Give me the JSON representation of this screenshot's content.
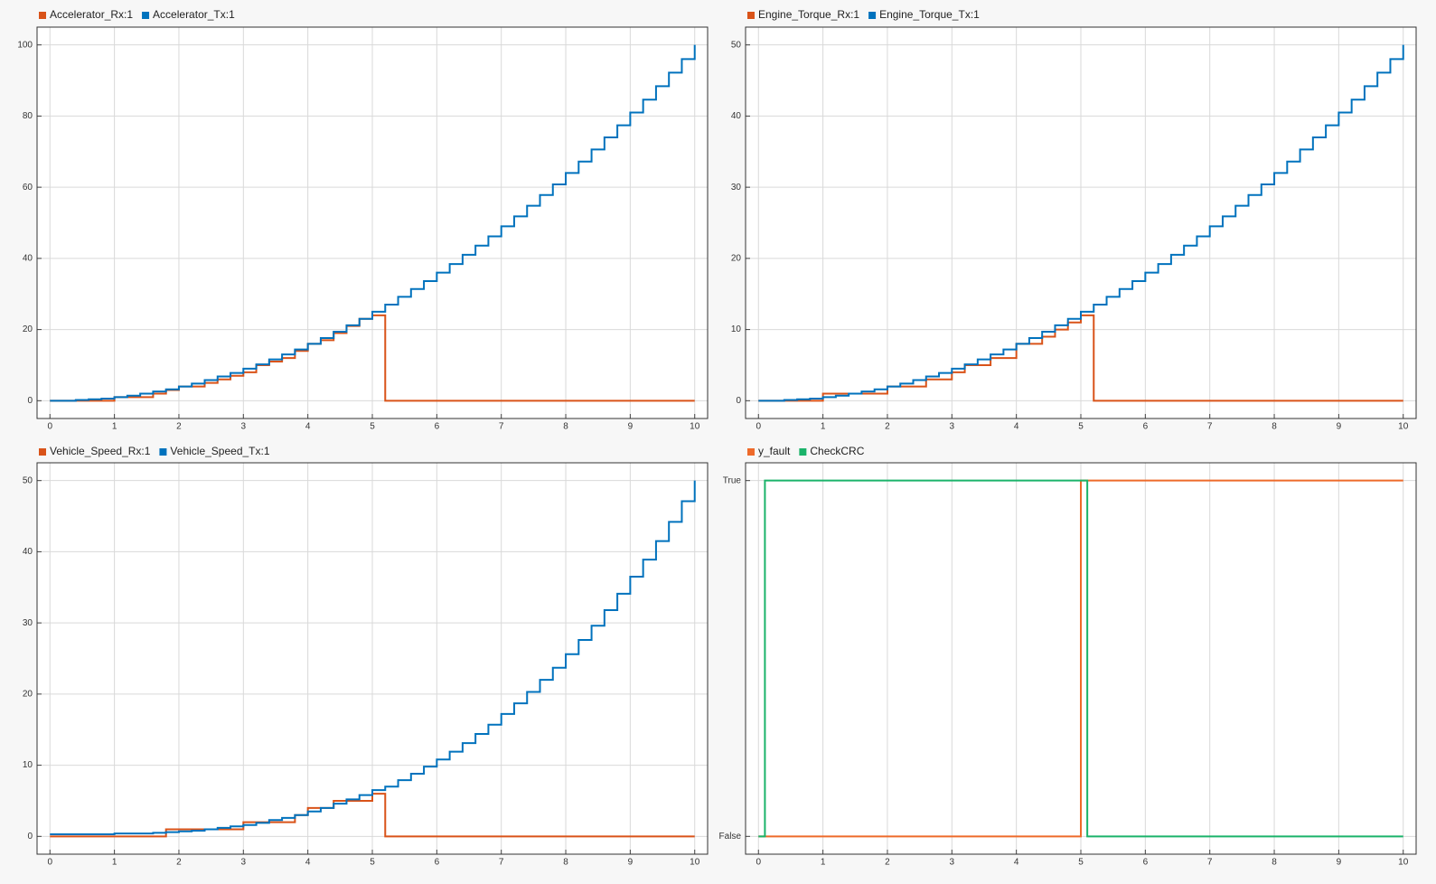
{
  "chart_data": [
    {
      "type": "line",
      "step": true,
      "x": [
        0,
        0.2,
        0.4,
        0.6,
        0.8,
        1,
        1.2,
        1.4,
        1.6,
        1.8,
        2,
        2.2,
        2.4,
        2.6,
        2.8,
        3,
        3.2,
        3.4,
        3.6,
        3.8,
        4,
        4.2,
        4.4,
        4.6,
        4.8,
        5,
        5.2,
        5.4,
        5.6,
        5.8,
        6,
        6.2,
        6.4,
        6.6,
        6.8,
        7,
        7.2,
        7.4,
        7.6,
        7.8,
        8,
        8.2,
        8.4,
        8.6,
        8.8,
        9,
        9.2,
        9.4,
        9.6,
        9.8,
        10
      ],
      "series": [
        {
          "name": "Accelerator_Rx:1",
          "color": "#d95319",
          "values": [
            0,
            0,
            0,
            0,
            0,
            1,
            1,
            1,
            2,
            3,
            4,
            4,
            5,
            6,
            7,
            8,
            10,
            11,
            12,
            14,
            16,
            17,
            19,
            21,
            23,
            24,
            0,
            0,
            0,
            0,
            0,
            0,
            0,
            0,
            0,
            0,
            0,
            0,
            0,
            0,
            0,
            0,
            0,
            0,
            0,
            0,
            0,
            0,
            0,
            0,
            0
          ]
        },
        {
          "name": "Accelerator_Tx:1",
          "color": "#0072bd",
          "values": [
            0,
            0,
            0.2,
            0.4,
            0.6,
            1,
            1.4,
            2,
            2.6,
            3.2,
            4,
            4.8,
            5.8,
            6.8,
            7.8,
            9,
            10.2,
            11.6,
            13,
            14.4,
            16,
            17.6,
            19.4,
            21.2,
            23,
            25,
            27,
            29.2,
            31.4,
            33.6,
            36,
            38.4,
            41,
            43.6,
            46.2,
            49,
            51.8,
            54.8,
            57.8,
            60.8,
            64,
            67.2,
            70.6,
            74,
            77.4,
            81,
            84.6,
            88.4,
            92.2,
            96,
            100
          ]
        }
      ],
      "xlim": [
        -0.2,
        10.2
      ],
      "xticks": [
        0,
        1,
        2,
        3,
        4,
        5,
        6,
        7,
        8,
        9,
        10
      ],
      "ylim": [
        -5,
        105
      ],
      "yticks": [
        0,
        20,
        40,
        60,
        80,
        100
      ],
      "grid": true
    },
    {
      "type": "line",
      "step": true,
      "x": [
        0,
        0.2,
        0.4,
        0.6,
        0.8,
        1,
        1.2,
        1.4,
        1.6,
        1.8,
        2,
        2.2,
        2.4,
        2.6,
        2.8,
        3,
        3.2,
        3.4,
        3.6,
        3.8,
        4,
        4.2,
        4.4,
        4.6,
        4.8,
        5,
        5.2,
        5.4,
        5.6,
        5.8,
        6,
        6.2,
        6.4,
        6.6,
        6.8,
        7,
        7.2,
        7.4,
        7.6,
        7.8,
        8,
        8.2,
        8.4,
        8.6,
        8.8,
        9,
        9.2,
        9.4,
        9.6,
        9.8,
        10
      ],
      "series": [
        {
          "name": "Engine_Torque_Rx:1",
          "color": "#d95319",
          "values": [
            0,
            0,
            0,
            0,
            0,
            1,
            1,
            1,
            1,
            1,
            2,
            2,
            2,
            3,
            3,
            4,
            5,
            5,
            6,
            6,
            8,
            8,
            9,
            10,
            11,
            12,
            0,
            0,
            0,
            0,
            0,
            0,
            0,
            0,
            0,
            0,
            0,
            0,
            0,
            0,
            0,
            0,
            0,
            0,
            0,
            0,
            0,
            0,
            0,
            0,
            0
          ]
        },
        {
          "name": "Engine_Torque_Tx:1",
          "color": "#0072bd",
          "values": [
            0,
            0,
            0.1,
            0.2,
            0.3,
            0.5,
            0.7,
            1,
            1.3,
            1.6,
            2,
            2.4,
            2.9,
            3.4,
            3.9,
            4.5,
            5.1,
            5.8,
            6.5,
            7.2,
            8,
            8.8,
            9.7,
            10.6,
            11.5,
            12.5,
            13.5,
            14.6,
            15.7,
            16.8,
            18,
            19.2,
            20.5,
            21.8,
            23.1,
            24.5,
            25.9,
            27.4,
            28.9,
            30.4,
            32,
            33.6,
            35.3,
            37,
            38.7,
            40.5,
            42.3,
            44.2,
            46.1,
            48,
            50
          ]
        }
      ],
      "xlim": [
        -0.2,
        10.2
      ],
      "xticks": [
        0,
        1,
        2,
        3,
        4,
        5,
        6,
        7,
        8,
        9,
        10
      ],
      "ylim": [
        -2.5,
        52.5
      ],
      "yticks": [
        0,
        10,
        20,
        30,
        40,
        50
      ],
      "grid": true
    },
    {
      "type": "line",
      "step": true,
      "x": [
        0,
        0.2,
        0.4,
        0.6,
        0.8,
        1,
        1.2,
        1.4,
        1.6,
        1.8,
        2,
        2.2,
        2.4,
        2.6,
        2.8,
        3,
        3.2,
        3.4,
        3.6,
        3.8,
        4,
        4.2,
        4.4,
        4.6,
        4.8,
        5,
        5.2,
        5.4,
        5.6,
        5.8,
        6,
        6.2,
        6.4,
        6.6,
        6.8,
        7,
        7.2,
        7.4,
        7.6,
        7.8,
        8,
        8.2,
        8.4,
        8.6,
        8.8,
        9,
        9.2,
        9.4,
        9.6,
        9.8,
        10
      ],
      "series": [
        {
          "name": "Vehicle_Speed_Rx:1",
          "color": "#d95319",
          "values": [
            0,
            0,
            0,
            0,
            0,
            0,
            0,
            0,
            0,
            1,
            1,
            1,
            1,
            1,
            1,
            2,
            2,
            2,
            2,
            3,
            4,
            4,
            5,
            5,
            5,
            6,
            0,
            0,
            0,
            0,
            0,
            0,
            0,
            0,
            0,
            0,
            0,
            0,
            0,
            0,
            0,
            0,
            0,
            0,
            0,
            0,
            0,
            0,
            0,
            0,
            0
          ]
        },
        {
          "name": "Vehicle_Speed_Tx:1",
          "color": "#0072bd",
          "values": [
            0.3,
            0.3,
            0.3,
            0.3,
            0.3,
            0.4,
            0.4,
            0.4,
            0.5,
            0.6,
            0.7,
            0.8,
            1,
            1.2,
            1.4,
            1.6,
            1.9,
            2.3,
            2.6,
            3,
            3.5,
            4,
            4.6,
            5.2,
            5.8,
            6.5,
            7,
            7.9,
            8.8,
            9.8,
            10.8,
            11.9,
            13.1,
            14.4,
            15.7,
            17.2,
            18.7,
            20.3,
            22,
            23.7,
            25.6,
            27.6,
            29.6,
            31.8,
            34.1,
            36.5,
            38.9,
            41.5,
            44.2,
            47.1,
            50
          ]
        }
      ],
      "xlim": [
        -0.2,
        10.2
      ],
      "xticks": [
        0,
        1,
        2,
        3,
        4,
        5,
        6,
        7,
        8,
        9,
        10
      ],
      "ylim": [
        -2.5,
        52.5
      ],
      "yticks": [
        0,
        10,
        20,
        30,
        40,
        50
      ],
      "grid": true
    },
    {
      "type": "line",
      "step": true,
      "x": [
        0,
        0.1,
        5,
        5.1,
        10
      ],
      "series": [
        {
          "name": "y_fault",
          "color": "#ee6a2a",
          "values": [
            0,
            0,
            1,
            1,
            1
          ]
        },
        {
          "name": "CheckCRC",
          "color": "#1bb36a",
          "values": [
            0,
            1,
            1,
            0,
            0
          ]
        }
      ],
      "xlim": [
        -0.2,
        10.2
      ],
      "xticks": [
        0,
        1,
        2,
        3,
        4,
        5,
        6,
        7,
        8,
        9,
        10
      ],
      "ylim": [
        -0.05,
        1.05
      ],
      "yticks": [
        {
          "value": 0,
          "label": "False"
        },
        {
          "value": 1,
          "label": "True"
        }
      ],
      "grid": true
    }
  ]
}
